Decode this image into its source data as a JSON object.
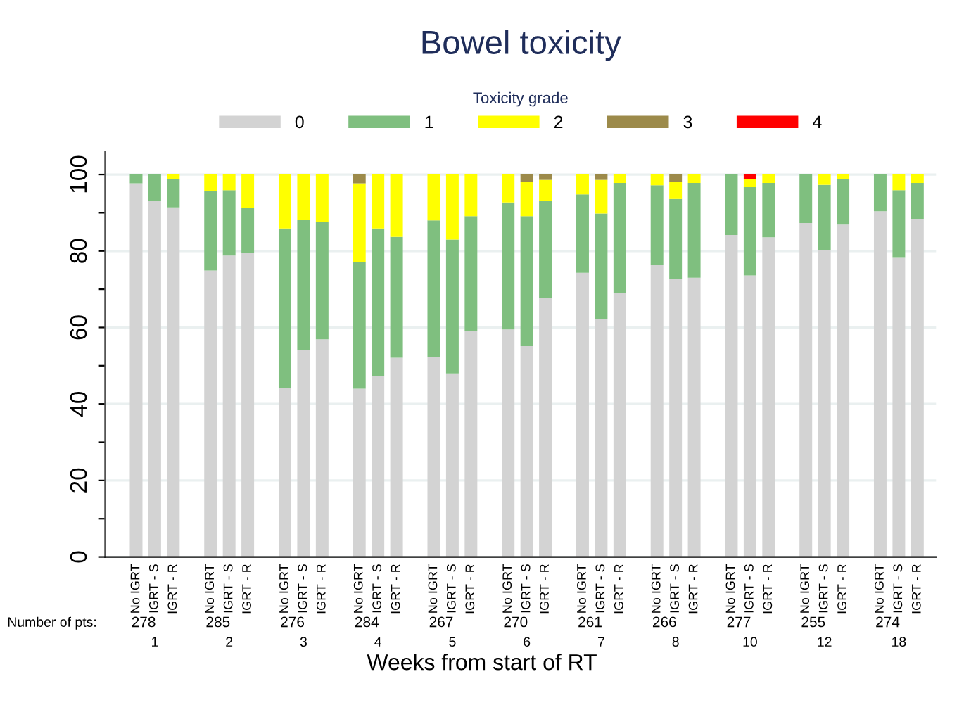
{
  "chart_data": {
    "type": "bar",
    "stacked": true,
    "title": "Bowel toxicity",
    "legend_title": "Toxicity grade",
    "xlabel": "Weeks from start of RT",
    "categories": [
      "No IGRT",
      "IGRT - S",
      "IGRT - R",
      null,
      "No IGRT",
      "IGRT - S",
      "IGRT - R",
      null,
      "No IGRT",
      "IGRT - S",
      "IGRT - R",
      null,
      "No IGRT",
      "IGRT - S",
      "IGRT - R",
      null,
      "No IGRT",
      "IGRT - S",
      "IGRT - R",
      null,
      "No IGRT",
      "IGRT - S",
      "IGRT - R",
      null,
      "No IGRT",
      "IGRT - S",
      "IGRT - R",
      null,
      "No IGRT",
      "IGRT - S",
      "IGRT - R",
      null,
      "No IGRT",
      "IGRT - S",
      "IGRT - R",
      null,
      "No IGRT",
      "IGRT - S",
      "IGRT - R",
      null,
      "No IGRT",
      "IGRT - S",
      "IGRT - R"
    ],
    "series": [
      {
        "name": "0",
        "color": "#d3d3d3",
        "values": [
          97.7,
          93.0,
          91.4,
          null,
          74.9,
          78.8,
          79.4,
          null,
          44.2,
          54.2,
          56.9,
          null,
          44.0,
          47.3,
          52.1,
          null,
          52.3,
          48.0,
          59.1,
          null,
          59.5,
          55.1,
          67.8,
          null,
          74.3,
          62.2,
          68.9,
          null,
          76.4,
          72.8,
          73.0,
          null,
          84.2,
          73.6,
          83.6,
          null,
          87.3,
          80.2,
          86.9,
          null,
          90.4,
          78.4,
          88.4
        ]
      },
      {
        "name": "1",
        "color": "#7fbf7f",
        "values": [
          2.3,
          7.0,
          7.4,
          null,
          20.7,
          17.1,
          11.8,
          null,
          41.7,
          33.9,
          30.6,
          null,
          33.0,
          38.6,
          31.6,
          null,
          35.7,
          35.0,
          30.0,
          null,
          33.2,
          34.0,
          25.4,
          null,
          20.5,
          27.6,
          28.9,
          null,
          20.8,
          20.8,
          24.8,
          null,
          15.8,
          23.1,
          14.2,
          null,
          12.7,
          17.1,
          12.0,
          null,
          9.6,
          17.5,
          9.4
        ]
      },
      {
        "name": "2",
        "color": "#ffff00",
        "values": [
          0,
          0,
          1.2,
          null,
          4.4,
          4.1,
          8.8,
          null,
          14.1,
          11.9,
          12.5,
          null,
          20.7,
          14.1,
          16.3,
          null,
          12.0,
          17.0,
          10.9,
          null,
          7.3,
          9.0,
          5.4,
          null,
          5.2,
          8.8,
          2.2,
          null,
          2.8,
          4.5,
          2.2,
          null,
          0,
          2.2,
          2.2,
          null,
          0,
          2.7,
          1.1,
          null,
          0,
          4.1,
          2.2
        ]
      },
      {
        "name": "3",
        "color": "#9c8a4a",
        "values": [
          0,
          0,
          0,
          null,
          0,
          0,
          0,
          null,
          0,
          0,
          0,
          null,
          2.3,
          0,
          0,
          null,
          0,
          0,
          0,
          null,
          0,
          1.9,
          1.4,
          null,
          0,
          1.4,
          0,
          null,
          0,
          1.9,
          0,
          null,
          0,
          0,
          0,
          null,
          0,
          0,
          0,
          null,
          0,
          0,
          0
        ]
      },
      {
        "name": "4",
        "color": "#ff0000",
        "values": [
          0,
          0,
          0,
          null,
          0,
          0,
          0,
          null,
          0,
          0,
          0,
          null,
          0,
          0,
          0,
          null,
          0,
          0,
          0,
          null,
          0,
          0,
          0,
          null,
          0,
          0,
          0,
          null,
          0,
          0,
          0,
          null,
          0,
          1.1,
          0,
          null,
          0,
          0,
          0,
          null,
          0,
          0,
          0
        ]
      }
    ],
    "ylim": [
      0,
      106
    ],
    "yticks": [
      0,
      {
        "value": 10,
        "label": null
      },
      20,
      {
        "value": 30,
        "label": null
      },
      40,
      {
        "value": 50,
        "label": null
      },
      60,
      {
        "value": 70,
        "label": null
      },
      80,
      {
        "value": 90,
        "label": null
      },
      100
    ],
    "grid": "y",
    "legend": "top",
    "annotations": [
      "Number of pts:",
      "278",
      "285",
      "276",
      "284",
      "267",
      "270",
      "261",
      "266",
      "277",
      "255",
      "274",
      "1",
      "2",
      "3",
      "4",
      "5",
      "6",
      "7",
      "8",
      "10",
      "12",
      "18"
    ]
  }
}
